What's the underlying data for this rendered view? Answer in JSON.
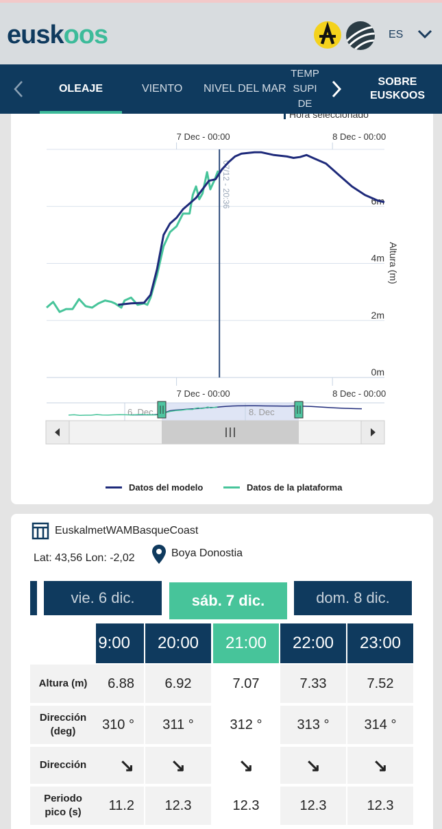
{
  "header": {
    "logo_part1": "eusk",
    "logo_part2": "oos",
    "lang": "ES"
  },
  "nav": {
    "tabs": [
      {
        "label": "OLEAJE"
      },
      {
        "label": "VIENTO"
      },
      {
        "label": "NIVEL DEL MAR"
      },
      {
        "label_lines": [
          "TEMP",
          "SUPI",
          "DE"
        ]
      }
    ],
    "about": [
      "SOBRE",
      "EUSKOOS"
    ]
  },
  "chart_data": {
    "type": "line",
    "top_legend_fragment": "Hora seleccionado",
    "x_ticks": [
      "7 Dec - 00:00",
      "8 Dec - 00:00"
    ],
    "ylabel": "Altura (m)",
    "y_ticks": [
      "0m",
      "2m",
      "4m",
      "6m"
    ],
    "ylim": [
      0,
      8
    ],
    "selected_time_label": "07/12 - 20:36",
    "navigator_labels": [
      "6. Dec",
      "8. Dec"
    ],
    "series": [
      {
        "name": "Datos del modelo",
        "color": "#1e2a7a",
        "points": [
          [
            -9,
            2.55
          ],
          [
            -7,
            2.6
          ],
          [
            -5,
            2.62
          ],
          [
            -4,
            2.9
          ],
          [
            -3,
            3.8
          ],
          [
            -2,
            5.0
          ],
          [
            -1,
            5.4
          ],
          [
            0,
            5.6
          ],
          [
            1,
            5.9
          ],
          [
            2,
            6.1
          ],
          [
            3,
            6.3
          ],
          [
            4,
            6.6
          ],
          [
            5,
            6.9
          ],
          [
            6,
            6.95
          ],
          [
            7,
            7.3
          ],
          [
            8,
            7.55
          ],
          [
            9,
            7.75
          ],
          [
            10,
            7.85
          ],
          [
            12,
            7.9
          ],
          [
            13,
            7.9
          ],
          [
            15,
            7.8
          ],
          [
            17,
            7.75
          ],
          [
            18,
            7.7
          ],
          [
            19,
            7.73
          ],
          [
            20,
            7.8
          ],
          [
            21,
            7.7
          ],
          [
            23,
            7.5
          ],
          [
            25,
            7.1
          ],
          [
            27,
            6.7
          ],
          [
            29,
            6.4
          ],
          [
            31,
            6.2
          ],
          [
            32,
            6.15
          ]
        ]
      },
      {
        "name": "Datos de la plataforma",
        "color": "#47c49a",
        "points": [
          [
            -20,
            2.45
          ],
          [
            -19,
            2.65
          ],
          [
            -18,
            2.3
          ],
          [
            -17,
            2.4
          ],
          [
            -16,
            2.4
          ],
          [
            -15,
            2.75
          ],
          [
            -14,
            2.5
          ],
          [
            -13,
            2.45
          ],
          [
            -12,
            2.6
          ],
          [
            -11,
            2.7
          ],
          [
            -10,
            2.65
          ],
          [
            -9.5,
            2.6
          ],
          [
            -8.5,
            2.45
          ],
          [
            -8,
            2.7
          ],
          [
            -7,
            2.8
          ],
          [
            -6,
            2.55
          ],
          [
            -5,
            2.6
          ],
          [
            -4.5,
            2.55
          ],
          [
            -4,
            2.8
          ],
          [
            -3,
            3.6
          ],
          [
            -2,
            4.6
          ],
          [
            -1,
            5.1
          ],
          [
            0,
            5.3
          ],
          [
            1,
            5.75
          ],
          [
            2,
            5.75
          ],
          [
            2.5,
            6.4
          ],
          [
            3,
            6.7
          ],
          [
            3.5,
            6.25
          ],
          [
            4,
            6.45
          ],
          [
            4.7,
            7.2
          ],
          [
            5.2,
            6.6
          ],
          [
            5.8,
            6.9
          ],
          [
            6.4,
            7.25
          ]
        ]
      }
    ],
    "selected_x": 6.6,
    "x_domain": [
      -20,
      32
    ]
  },
  "legend": [
    "Datos del modelo",
    "Datos de la plataforma"
  ],
  "table": {
    "model": "EuskalmetWAMBasqueCoast",
    "coords": "Lat: 43,56 Lon: -2,02",
    "buoy": "Boya Donostia",
    "days": [
      "vie. 6 dic.",
      "sáb. 7 dic.",
      "dom. 8 dic."
    ],
    "hours": [
      "9:00",
      "20:00",
      "21:00",
      "22:00",
      "23:00"
    ],
    "rows": [
      {
        "label": [
          "Altura (m)"
        ],
        "values": [
          "6.88",
          "6.92",
          "7.07",
          "7.33",
          "7.52"
        ]
      },
      {
        "label": [
          "Dirección",
          "(deg)"
        ],
        "values": [
          "310 °",
          "311 °",
          "312 °",
          "313 °",
          "314 °"
        ]
      },
      {
        "label": [
          "Dirección"
        ],
        "values": [
          "↘",
          "↘",
          "↘",
          "↘",
          "↘"
        ],
        "arrows": true
      },
      {
        "label": [
          "Periodo",
          "pico (s)"
        ],
        "values": [
          "11.2",
          "12.3",
          "12.3",
          "12.3",
          "12.3"
        ]
      }
    ]
  }
}
